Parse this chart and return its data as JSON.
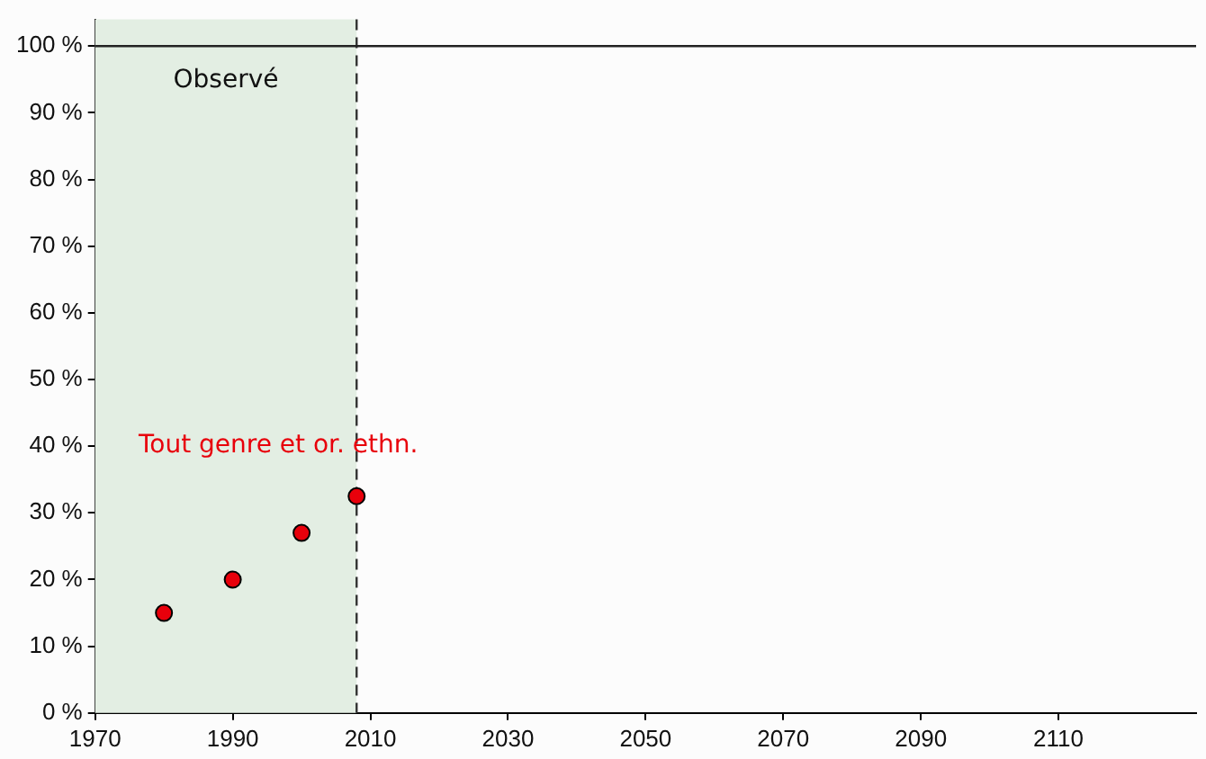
{
  "chart_data": {
    "type": "scatter",
    "marker": "circle",
    "grid": false,
    "legend": false,
    "xlim": [
      1970,
      2130
    ],
    "xticks": [
      1970,
      1990,
      2010,
      2030,
      2050,
      2070,
      2090,
      2110
    ],
    "ylim": [
      0,
      104
    ],
    "yticks": [
      {
        "value": 0,
        "label": "0 %"
      },
      {
        "value": 10,
        "label": "10 %"
      },
      {
        "value": 20,
        "label": "20 %"
      },
      {
        "value": 30,
        "label": "30 %"
      },
      {
        "value": 40,
        "label": "40 %"
      },
      {
        "value": 50,
        "label": "50 %"
      },
      {
        "value": 60,
        "label": "60 %"
      },
      {
        "value": 70,
        "label": "70 %"
      },
      {
        "value": 80,
        "label": "80 %"
      },
      {
        "value": 90,
        "label": "90 %"
      },
      {
        "value": 100,
        "label": "100 %"
      }
    ],
    "series": [
      {
        "name": "Tout genre et or. ethn.",
        "color": "#e8000b",
        "x": [
          1980,
          1990,
          2000,
          2008
        ],
        "values": [
          15,
          20,
          27,
          32.5
        ]
      }
    ],
    "bands": [
      {
        "axis": "x",
        "from": 1970,
        "to": 2008,
        "label": "Observé",
        "color": "#e3eee3"
      }
    ],
    "ref_lines": [
      {
        "axis": "x",
        "value": 2008,
        "line_style": "dashed",
        "color": "#333333"
      },
      {
        "axis": "y",
        "value": 100,
        "line_style": "solid",
        "color": "#222222"
      }
    ]
  }
}
